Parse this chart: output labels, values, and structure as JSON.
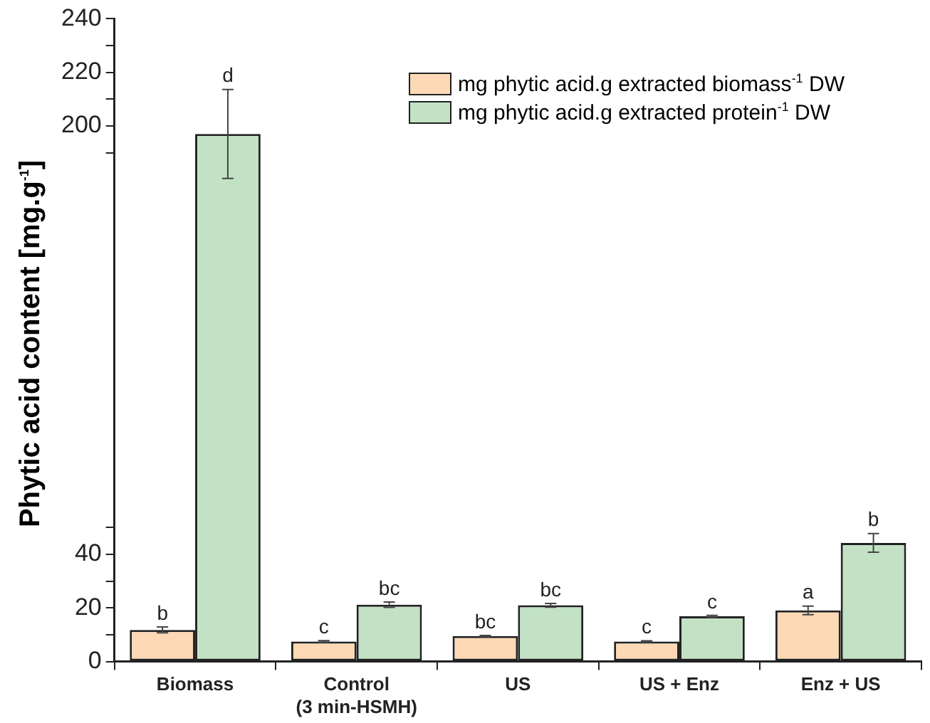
{
  "chart_data": {
    "type": "bar",
    "ylabel": "Phytic acid content [mg.g$^{-1}$]",
    "categories": [
      "Biomass",
      "Control\n(3 min-HSMH)",
      "US",
      "US + Enz",
      "Enz + US"
    ],
    "series": [
      {
        "name": "mg phytic acid.g extracted biomass$^{-1}$ DW",
        "color": "#fdd9b5",
        "values": [
          11.8,
          7.5,
          9.5,
          7.5,
          19.1
        ],
        "errors": [
          1.1,
          0.3,
          0.2,
          0.2,
          1.6
        ],
        "value_labels": [
          "b",
          "c",
          "bc",
          "c",
          "a"
        ]
      },
      {
        "name": "mg phytic acid.g extracted protein$^{-1}$ DW",
        "color": "#c3e2c5",
        "values": [
          197,
          21.2,
          21,
          16.9,
          44.3
        ],
        "errors": [
          16.6,
          1,
          0.7,
          0.3,
          3.5
        ],
        "value_labels": [
          "d",
          "bc",
          "bc",
          "c",
          "b"
        ]
      }
    ],
    "ylim": [
      0,
      240
    ],
    "yticks": [
      0,
      {
        "value": 10,
        "label": null
      },
      20,
      {
        "value": 30,
        "label": null
      },
      40,
      {
        "value": 50,
        "label": null
      },
      {
        "value": 190,
        "label": null
      },
      200,
      {
        "value": 210,
        "label": null
      },
      220,
      {
        "value": 230,
        "label": null
      },
      240
    ],
    "grid": false,
    "legend": "top right"
  }
}
